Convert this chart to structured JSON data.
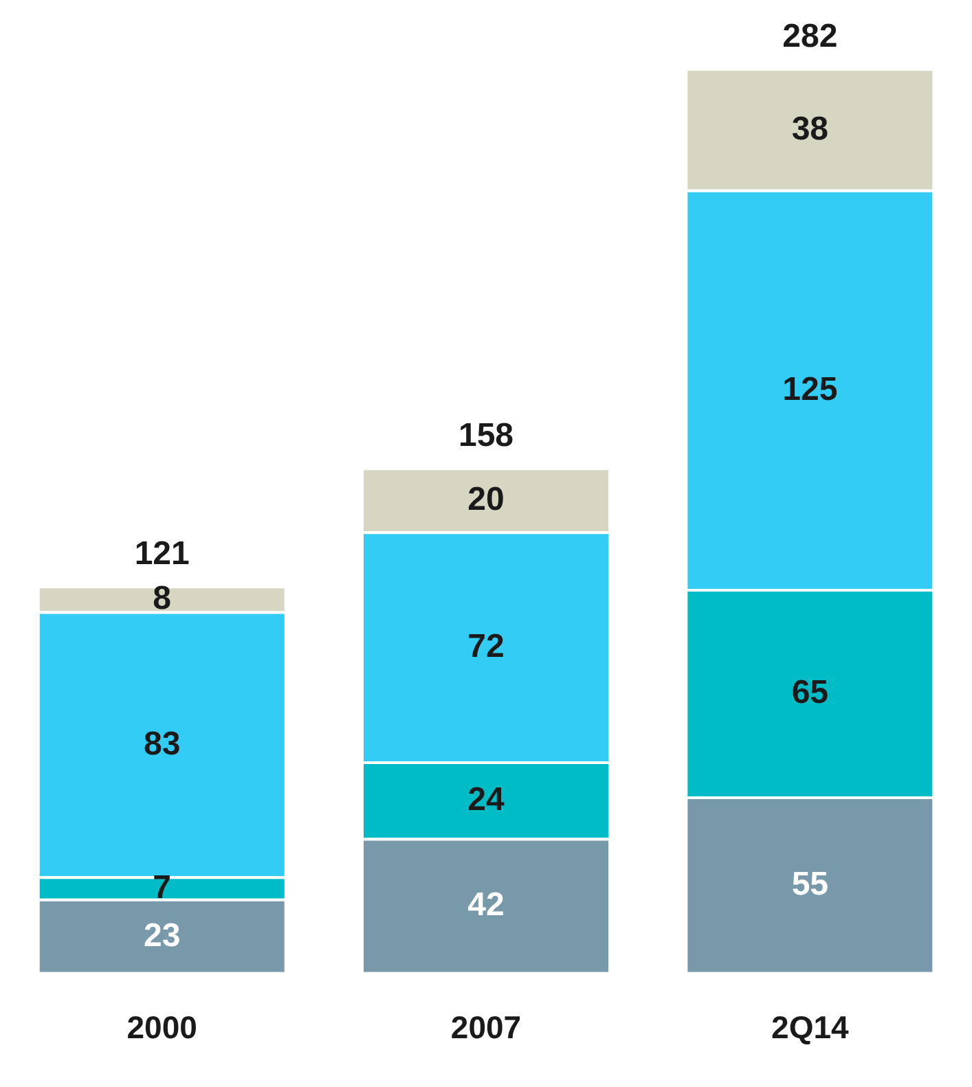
{
  "chart_data": {
    "type": "bar",
    "stacked": true,
    "categories": [
      "2000",
      "2007",
      "2Q14"
    ],
    "series": [
      {
        "color": "#7799aa",
        "values": [
          23,
          42,
          55
        ]
      },
      {
        "color": "#00bcc6",
        "values": [
          7,
          24,
          65
        ]
      },
      {
        "color": "#33ccf5",
        "values": [
          83,
          72,
          125
        ]
      },
      {
        "color": "#d6d6c2",
        "values": [
          8,
          20,
          38
        ]
      }
    ],
    "data_labels": true,
    "totals": [
      "121",
      "158",
      "282"
    ],
    "grid": false,
    "legend": false,
    "tick_labels": "x"
  }
}
